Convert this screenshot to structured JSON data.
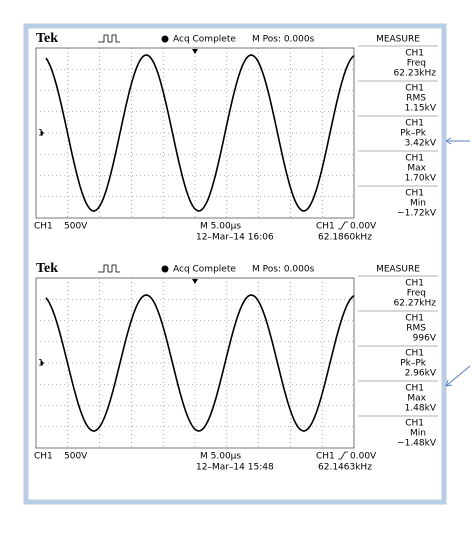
{
  "screens": [
    {
      "brand": "Tek",
      "status": "Acq Complete",
      "mpos": "M Pos: 0.000s",
      "measure": "MEASURE",
      "marker": "1",
      "measurements": [
        {
          "ch": "CH1",
          "name": "Freq",
          "value": "62.23kHz"
        },
        {
          "ch": "CH1",
          "name": "RMS",
          "value": "1.15kV"
        },
        {
          "ch": "CH1",
          "name": "Pk–Pk",
          "value": "3.42kV"
        },
        {
          "ch": "CH1",
          "name": "Max",
          "value": "1.70kV"
        },
        {
          "ch": "CH1",
          "name": "Min",
          "value": "−1.72kV"
        }
      ],
      "channel": "CH1",
      "volts": "500V",
      "timebase": "M 5.00µs",
      "date": "12–Mar–14 16:06",
      "trigger_channel": "CH1",
      "trigger_level": "0.00V",
      "frequency": "62.1860kHz"
    },
    {
      "brand": "Tek",
      "status": "Acq Complete",
      "mpos": "M Pos: 0.000s",
      "measure": "MEASURE",
      "marker": "1",
      "measurements": [
        {
          "ch": "CH1",
          "name": "Freq",
          "value": "62.27kHz"
        },
        {
          "ch": "CH1",
          "name": "RMS",
          "value": "996V"
        },
        {
          "ch": "CH1",
          "name": "Pk–Pk",
          "value": "2.96kV"
        },
        {
          "ch": "CH1",
          "name": "Max",
          "value": "1.48kV"
        },
        {
          "ch": "CH1",
          "name": "Min",
          "value": "−1.48kV"
        }
      ],
      "channel": "CH1",
      "volts": "500V",
      "timebase": "M 5.00µs",
      "date": "12–Mar–14 15:48",
      "trigger_channel": "CH1",
      "trigger_level": "0.00V",
      "frequency": "62.1463kHz"
    }
  ]
}
